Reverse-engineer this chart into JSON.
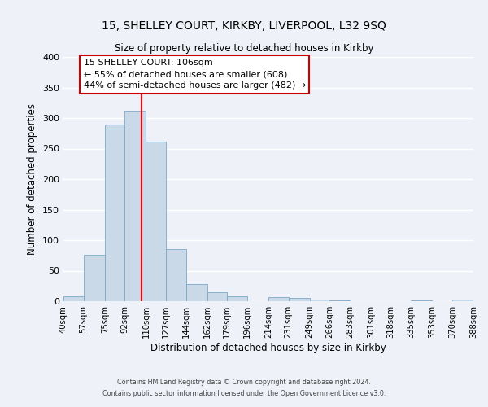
{
  "title": "15, SHELLEY COURT, KIRKBY, LIVERPOOL, L32 9SQ",
  "subtitle": "Size of property relative to detached houses in Kirkby",
  "xlabel": "Distribution of detached houses by size in Kirkby",
  "ylabel": "Number of detached properties",
  "bin_edges": [
    40,
    57,
    75,
    92,
    110,
    127,
    144,
    162,
    179,
    196,
    214,
    231,
    249,
    266,
    283,
    301,
    318,
    335,
    353,
    370,
    388
  ],
  "bin_heights": [
    8,
    76,
    290,
    312,
    262,
    85,
    28,
    15,
    8,
    0,
    7,
    5,
    3,
    2,
    0,
    0,
    0,
    1,
    0,
    3
  ],
  "bar_facecolor": "#c9d9e8",
  "bar_edgecolor": "#7ba7c7",
  "background_color": "#eef2f8",
  "grid_color": "#ffffff",
  "vline_x": 106,
  "vline_color": "#ff0000",
  "annotation_title": "15 SHELLEY COURT: 106sqm",
  "annotation_line2": "← 55% of detached houses are smaller (608)",
  "annotation_line3": "44% of semi-detached houses are larger (482) →",
  "annotation_box_edgecolor": "#cc0000",
  "annotation_box_facecolor": "#ffffff",
  "xlim": [
    40,
    388
  ],
  "ylim": [
    0,
    400
  ],
  "yticks": [
    0,
    50,
    100,
    150,
    200,
    250,
    300,
    350,
    400
  ],
  "tick_labels": [
    "40sqm",
    "57sqm",
    "75sqm",
    "92sqm",
    "110sqm",
    "127sqm",
    "144sqm",
    "162sqm",
    "179sqm",
    "196sqm",
    "214sqm",
    "231sqm",
    "249sqm",
    "266sqm",
    "283sqm",
    "301sqm",
    "318sqm",
    "335sqm",
    "353sqm",
    "370sqm",
    "388sqm"
  ],
  "footer_line1": "Contains HM Land Registry data © Crown copyright and database right 2024.",
  "footer_line2": "Contains public sector information licensed under the Open Government Licence v3.0."
}
